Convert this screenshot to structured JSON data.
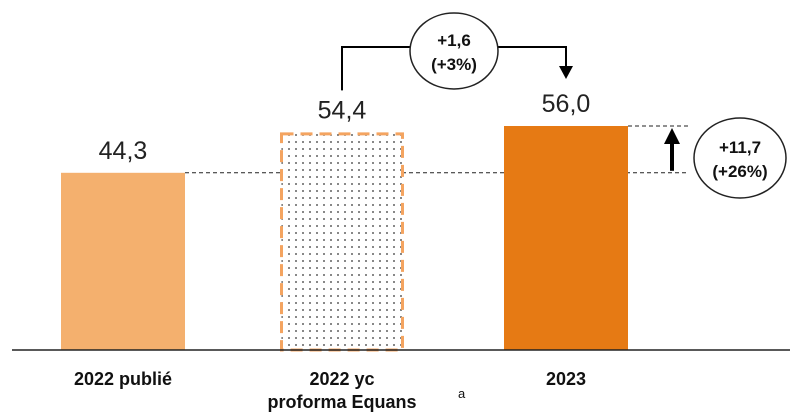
{
  "chart_data": {
    "type": "bar",
    "categories": [
      "2022 publié",
      "2022 yc proforma Equans",
      "2023"
    ],
    "category_lines": [
      [
        "2022 publié"
      ],
      [
        "2022 yc",
        "proforma Equans"
      ],
      [
        "2023"
      ]
    ],
    "values": [
      44.3,
      54.4,
      56.0
    ],
    "value_labels": [
      "44,3",
      "54,4",
      "56,0"
    ],
    "bar_styles": [
      "solid-light",
      "dotted-dashed",
      "solid-dark"
    ],
    "colors": {
      "light": "#F4B06E",
      "dark": "#E67A14",
      "outline": "#F4A460",
      "text": "#222222"
    },
    "footnote_marker": "a",
    "annotations": [
      {
        "from": "2022 yc proforma Equans",
        "to": "2023",
        "lines": [
          "+1,6",
          "(+3%)"
        ]
      },
      {
        "from": "2022 publié",
        "to": "2023",
        "lines": [
          "+11,7",
          "(+26%)"
        ]
      }
    ],
    "ylim": [
      0,
      60
    ],
    "title": "",
    "xlabel": "",
    "ylabel": ""
  }
}
